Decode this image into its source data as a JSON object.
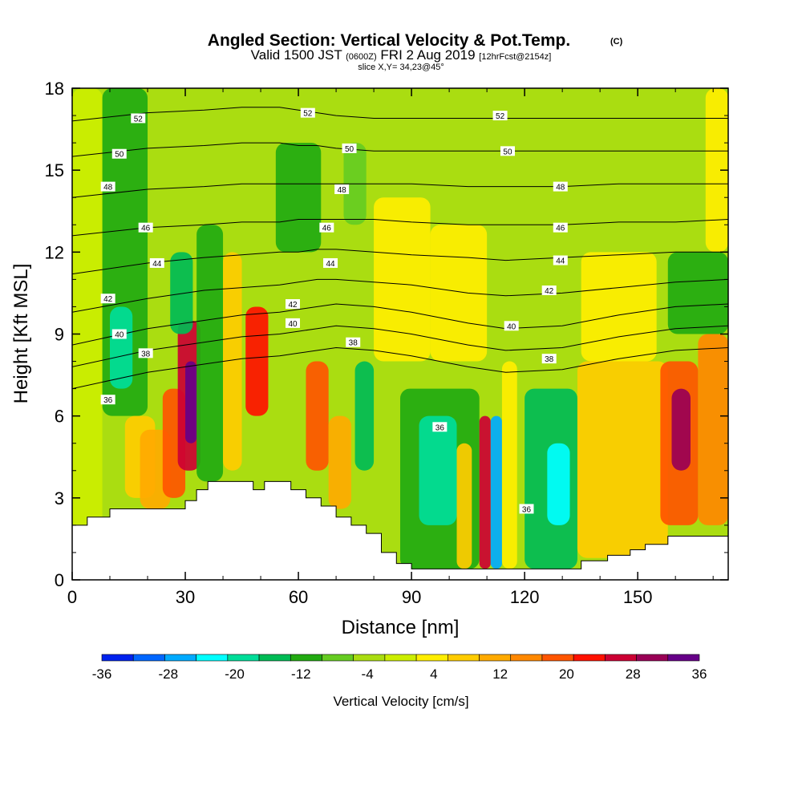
{
  "figure": {
    "title": "Angled Section: Vertical Velocity & Pot.Temp.",
    "title_unit": "(C)",
    "subtitle_valid": "Valid 1500 JST",
    "subtitle_utc": "(0600Z)",
    "subtitle_date": "FRI 2 Aug 2019",
    "subtitle_fcst": "[12hrFcst@2154z]",
    "slice_text": "slice X,Y= 34,23@45°"
  },
  "chart_data": {
    "type": "heatmap",
    "xlabel": "Distance [nm]",
    "ylabel": "Height [Kft MSL]",
    "xlim": [
      0,
      174
    ],
    "ylim": [
      0,
      18
    ],
    "x_ticks": [
      0,
      30,
      60,
      90,
      120,
      150
    ],
    "y_ticks": [
      0,
      3,
      6,
      9,
      12,
      15,
      18
    ],
    "colorbar": {
      "title": "Vertical Velocity [cm/s]",
      "range": [
        -36,
        36
      ],
      "tick_values": [
        -36,
        -28,
        -20,
        -12,
        -4,
        4,
        12,
        20,
        28,
        36
      ],
      "colors": [
        "#0022ee",
        "#0066ff",
        "#00aaff",
        "#00ffff",
        "#00dd99",
        "#00bb55",
        "#22aa11",
        "#66cc22",
        "#aadd11",
        "#ccee00",
        "#ffee00",
        "#ffcc00",
        "#ffaa00",
        "#ff8800",
        "#ff5500",
        "#ff1100",
        "#cc0033",
        "#990055",
        "#660088"
      ]
    },
    "default_velocity": -4,
    "velocity_cells": [
      {
        "x": [
          0,
          8
        ],
        "y": [
          0,
          18
        ],
        "v": 0
      },
      {
        "x": [
          8,
          20
        ],
        "y": [
          6,
          18
        ],
        "v": -10
      },
      {
        "x": [
          10,
          16
        ],
        "y": [
          7,
          10
        ],
        "v": -20
      },
      {
        "x": [
          14,
          22
        ],
        "y": [
          3,
          6
        ],
        "v": 8
      },
      {
        "x": [
          18,
          26
        ],
        "y": [
          2.6,
          5.5
        ],
        "v": 12
      },
      {
        "x": [
          24,
          30
        ],
        "y": [
          3,
          7
        ],
        "v": 18
      },
      {
        "x": [
          28,
          34
        ],
        "y": [
          4,
          9.5
        ],
        "v": 28
      },
      {
        "x": [
          30,
          33
        ],
        "y": [
          5,
          8
        ],
        "v": 34
      },
      {
        "x": [
          26,
          32
        ],
        "y": [
          9,
          12
        ],
        "v": -16
      },
      {
        "x": [
          33,
          40
        ],
        "y": [
          3.6,
          13
        ],
        "v": -12
      },
      {
        "x": [
          40,
          45
        ],
        "y": [
          4,
          12
        ],
        "v": 6
      },
      {
        "x": [
          46,
          52
        ],
        "y": [
          6,
          10
        ],
        "v": 22
      },
      {
        "x": [
          54,
          66
        ],
        "y": [
          12,
          16
        ],
        "v": -10
      },
      {
        "x": [
          62,
          68
        ],
        "y": [
          4,
          8
        ],
        "v": 20
      },
      {
        "x": [
          68,
          74
        ],
        "y": [
          2.6,
          6
        ],
        "v": 10
      },
      {
        "x": [
          75,
          80
        ],
        "y": [
          4,
          8
        ],
        "v": -14
      },
      {
        "x": [
          72,
          78
        ],
        "y": [
          13,
          16
        ],
        "v": -8
      },
      {
        "x": [
          87,
          108
        ],
        "y": [
          0.4,
          7
        ],
        "v": -12
      },
      {
        "x": [
          92,
          102
        ],
        "y": [
          2,
          6
        ],
        "v": -20
      },
      {
        "x": [
          102,
          106
        ],
        "y": [
          0.4,
          5
        ],
        "v": 6
      },
      {
        "x": [
          108,
          111
        ],
        "y": [
          0.4,
          6
        ],
        "v": 28
      },
      {
        "x": [
          111,
          114
        ],
        "y": [
          0.4,
          6
        ],
        "v": -28
      },
      {
        "x": [
          114,
          118
        ],
        "y": [
          0.4,
          8
        ],
        "v": 4
      },
      {
        "x": [
          120,
          134
        ],
        "y": [
          0.4,
          7
        ],
        "v": -14
      },
      {
        "x": [
          126,
          132
        ],
        "y": [
          2,
          5
        ],
        "v": -24
      },
      {
        "x": [
          134,
          158
        ],
        "y": [
          0.8,
          8
        ],
        "v": 6
      },
      {
        "x": [
          156,
          166
        ],
        "y": [
          2,
          8
        ],
        "v": 18
      },
      {
        "x": [
          159,
          164
        ],
        "y": [
          4,
          7
        ],
        "v": 32
      },
      {
        "x": [
          166,
          174
        ],
        "y": [
          2,
          9
        ],
        "v": 14
      },
      {
        "x": [
          158,
          174
        ],
        "y": [
          9,
          12
        ],
        "v": -12
      },
      {
        "x": [
          168,
          174
        ],
        "y": [
          12,
          18
        ],
        "v": 4
      },
      {
        "x": [
          80,
          95
        ],
        "y": [
          8,
          14
        ],
        "v": 4
      },
      {
        "x": [
          95,
          110
        ],
        "y": [
          8,
          13
        ],
        "v": 2
      },
      {
        "x": [
          135,
          155
        ],
        "y": [
          8,
          12
        ],
        "v": 4
      }
    ],
    "terrain": {
      "x": [
        0,
        4,
        4,
        10,
        10,
        30,
        30,
        33,
        33,
        36,
        36,
        48,
        48,
        51,
        51,
        58,
        58,
        62,
        62,
        66,
        66,
        70,
        70,
        74,
        74,
        78,
        78,
        82,
        82,
        86,
        86,
        90,
        90,
        135,
        135,
        142,
        142,
        148,
        148,
        152,
        152,
        158,
        158,
        174
      ],
      "y": [
        2,
        2,
        2.3,
        2.3,
        2.6,
        2.6,
        2.9,
        2.9,
        3.3,
        3.3,
        3.6,
        3.6,
        3.3,
        3.3,
        3.6,
        3.6,
        3.3,
        3.3,
        3.0,
        3.0,
        2.7,
        2.7,
        2.3,
        2.3,
        2.0,
        2.0,
        1.7,
        1.7,
        1.0,
        1.0,
        0.6,
        0.6,
        0.4,
        0.4,
        0.7,
        0.7,
        0.9,
        0.9,
        1.1,
        1.1,
        1.3,
        1.3,
        1.6,
        1.6
      ]
    },
    "theta_lines": [
      {
        "label": "36",
        "x": [
          0,
          20,
          35,
          45,
          55,
          60,
          65,
          70,
          80,
          90,
          105,
          115,
          130,
          145,
          160,
          174
        ],
        "y": [
          7.0,
          7.6,
          7.9,
          8.1,
          8.2,
          8.3,
          8.4,
          8.5,
          8.4,
          8.2,
          7.8,
          7.6,
          7.7,
          8.1,
          8.4,
          8.5
        ]
      },
      {
        "label": "38",
        "x": [
          0,
          20,
          35,
          45,
          55,
          60,
          65,
          70,
          80,
          90,
          105,
          115,
          130,
          145,
          160,
          174
        ],
        "y": [
          7.8,
          8.4,
          8.7,
          8.9,
          9.0,
          9.1,
          9.2,
          9.3,
          9.2,
          9.0,
          8.6,
          8.4,
          8.5,
          8.9,
          9.2,
          9.3
        ]
      },
      {
        "label": "40",
        "x": [
          0,
          20,
          35,
          45,
          55,
          60,
          65,
          70,
          80,
          90,
          105,
          115,
          130,
          145,
          160,
          174
        ],
        "y": [
          8.6,
          9.2,
          9.5,
          9.7,
          9.8,
          9.9,
          10.0,
          10.1,
          10.0,
          9.8,
          9.4,
          9.2,
          9.3,
          9.7,
          10.0,
          10.1
        ]
      },
      {
        "label": "42",
        "x": [
          0,
          20,
          35,
          45,
          55,
          60,
          65,
          70,
          80,
          90,
          105,
          115,
          130,
          145,
          160,
          174
        ],
        "y": [
          9.8,
          10.3,
          10.6,
          10.7,
          10.8,
          10.9,
          11.0,
          11.0,
          10.9,
          10.8,
          10.5,
          10.4,
          10.5,
          10.7,
          10.9,
          11.0
        ]
      },
      {
        "label": "44",
        "x": [
          0,
          20,
          35,
          45,
          55,
          60,
          65,
          70,
          80,
          90,
          105,
          115,
          130,
          145,
          160,
          174
        ],
        "y": [
          11.2,
          11.6,
          11.8,
          11.9,
          12.0,
          12.0,
          12.1,
          12.1,
          12.0,
          11.9,
          11.8,
          11.7,
          11.8,
          11.9,
          12.0,
          12.0
        ]
      },
      {
        "label": "46",
        "x": [
          0,
          20,
          35,
          45,
          55,
          60,
          65,
          70,
          80,
          90,
          105,
          115,
          130,
          145,
          160,
          174
        ],
        "y": [
          12.6,
          12.9,
          13.0,
          13.1,
          13.1,
          13.2,
          13.2,
          13.2,
          13.2,
          13.1,
          13.0,
          13.0,
          13.0,
          13.1,
          13.1,
          13.2
        ]
      },
      {
        "label": "48",
        "x": [
          0,
          20,
          35,
          45,
          55,
          60,
          65,
          70,
          80,
          90,
          105,
          115,
          130,
          145,
          160,
          174
        ],
        "y": [
          14.0,
          14.3,
          14.4,
          14.5,
          14.5,
          14.5,
          14.5,
          14.5,
          14.5,
          14.5,
          14.4,
          14.4,
          14.4,
          14.5,
          14.5,
          14.5
        ]
      },
      {
        "label": "50",
        "x": [
          0,
          20,
          35,
          45,
          55,
          60,
          65,
          70,
          80,
          90,
          105,
          115,
          130,
          145,
          160,
          174
        ],
        "y": [
          15.5,
          15.8,
          15.9,
          16.0,
          16.0,
          15.9,
          15.9,
          15.8,
          15.7,
          15.7,
          15.7,
          15.7,
          15.7,
          15.7,
          15.7,
          15.7
        ]
      },
      {
        "label": "52",
        "x": [
          0,
          20,
          35,
          45,
          55,
          60,
          65,
          70,
          80,
          90,
          105,
          115,
          130,
          145,
          160,
          174
        ],
        "y": [
          16.8,
          17.1,
          17.2,
          17.3,
          17.3,
          17.2,
          17.1,
          17.0,
          16.9,
          16.9,
          16.9,
          16.9,
          16.9,
          16.9,
          16.9,
          16.9
        ]
      }
    ],
    "theta_labels": [
      {
        "text": "52",
        "x": 17.5,
        "y": 16.9
      },
      {
        "text": "52",
        "x": 62.5,
        "y": 17.1
      },
      {
        "text": "52",
        "x": 113.5,
        "y": 17.0
      },
      {
        "text": "50",
        "x": 12.5,
        "y": 15.6
      },
      {
        "text": "50",
        "x": 73.5,
        "y": 15.8
      },
      {
        "text": "50",
        "x": 115.5,
        "y": 15.7
      },
      {
        "text": "48",
        "x": 9.5,
        "y": 14.4
      },
      {
        "text": "48",
        "x": 71.5,
        "y": 14.3
      },
      {
        "text": "48",
        "x": 129.5,
        "y": 14.4
      },
      {
        "text": "46",
        "x": 19.5,
        "y": 12.9
      },
      {
        "text": "46",
        "x": 67.5,
        "y": 12.9
      },
      {
        "text": "46",
        "x": 129.5,
        "y": 12.9
      },
      {
        "text": "44",
        "x": 22.5,
        "y": 11.6
      },
      {
        "text": "44",
        "x": 68.5,
        "y": 11.6
      },
      {
        "text": "44",
        "x": 129.5,
        "y": 11.7
      },
      {
        "text": "42",
        "x": 9.5,
        "y": 10.3
      },
      {
        "text": "42",
        "x": 58.5,
        "y": 10.1
      },
      {
        "text": "42",
        "x": 126.5,
        "y": 10.6
      },
      {
        "text": "40",
        "x": 12.5,
        "y": 9.0
      },
      {
        "text": "40",
        "x": 58.5,
        "y": 9.4
      },
      {
        "text": "40",
        "x": 116.5,
        "y": 9.3
      },
      {
        "text": "38",
        "x": 19.5,
        "y": 8.3
      },
      {
        "text": "38",
        "x": 74.5,
        "y": 8.7
      },
      {
        "text": "38",
        "x": 126.5,
        "y": 8.1
      },
      {
        "text": "36",
        "x": 9.5,
        "y": 6.6
      },
      {
        "text": "36",
        "x": 97.5,
        "y": 5.6
      },
      {
        "text": "36",
        "x": 120.5,
        "y": 2.6
      }
    ]
  }
}
